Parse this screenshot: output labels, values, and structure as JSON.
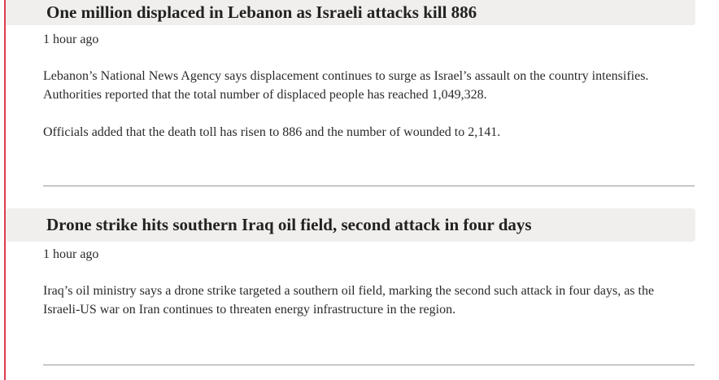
{
  "colors": {
    "accent_line": "#e03a4e",
    "title_bg": "#f0efed"
  },
  "posts": [
    {
      "title": "One million displaced in Lebanon as Israeli attacks kill 886",
      "time": "1 hour ago",
      "paragraphs": [
        "Lebanon’s National News Agency says displacement continues to surge as Israel’s assault on the country intensifies. Authorities reported that the total number of displaced people has reached 1,049,328.",
        "Officials added that the death toll has risen to 886 and the number of wounded to 2,141."
      ]
    },
    {
      "title": "Drone strike hits southern Iraq oil field, second attack in four days",
      "time": "1 hour ago",
      "paragraphs": [
        "Iraq’s oil ministry says a drone strike targeted a southern oil field, marking the second such attack in four days, as the Israeli-US war on Iran continues to threaten energy infrastructure in the region."
      ]
    }
  ]
}
